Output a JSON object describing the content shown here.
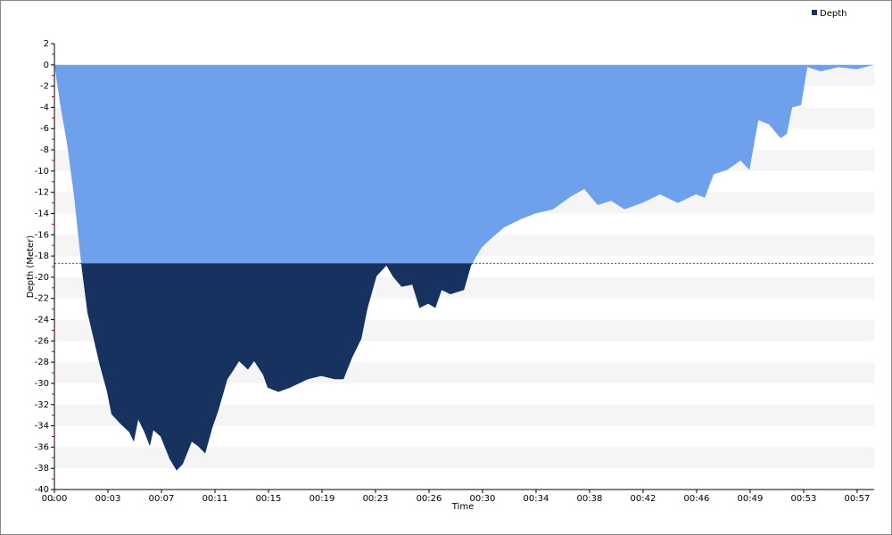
{
  "chart_data": {
    "type": "area",
    "x_label": "Time",
    "y_label": "Depth (Meter)",
    "x": [
      0,
      0.44,
      0.88,
      1.39,
      1.89,
      2.33,
      2.77,
      3.21,
      3.72,
      4.03,
      4.66,
      5.29,
      5.61,
      5.92,
      6.36,
      6.74,
      6.99,
      7.5,
      8.13,
      8.63,
      9.07,
      9.7,
      10.14,
      10.65,
      11.15,
      11.59,
      12.22,
      12.67,
      13.04,
      13.67,
      14.11,
      14.74,
      15.06,
      15.82,
      16.64,
      17.27,
      17.9,
      18.85,
      19.79,
      20.42,
      21.05,
      21.68,
      22.12,
      22.75,
      23.45,
      23.89,
      24.52,
      25.28,
      25.78,
      26.41,
      26.91,
      27.35,
      27.98,
      28.93,
      29.43,
      30.18,
      30.81,
      31.76,
      33.02,
      33.96,
      35.22,
      36.48,
      37.43,
      38.37,
      39.32,
      40.26,
      41.52,
      42.78,
      44.04,
      45.31,
      45.94,
      46.57,
      47.51,
      48.46,
      49.09,
      49.72,
      50.47,
      51.29,
      51.73,
      52.11,
      52.74,
      53.18,
      54.13,
      55.39,
      56.65,
      57.9
    ],
    "series": [
      {
        "name": "Depth",
        "color": "#17325f",
        "upper_color": "#6fa0ec",
        "values": [
          0,
          -4,
          -7.3,
          -12.4,
          -18.7,
          -23.3,
          -25.8,
          -28.3,
          -30.8,
          -32.9,
          -33.8,
          -34.6,
          -35.5,
          -33.4,
          -34.6,
          -35.9,
          -34.4,
          -35,
          -37.1,
          -38.2,
          -37.6,
          -35.5,
          -35.9,
          -36.6,
          -34.2,
          -32.5,
          -29.6,
          -28.7,
          -27.9,
          -28.7,
          -27.9,
          -29.2,
          -30.4,
          -30.8,
          -30.4,
          -30,
          -29.6,
          -29.3,
          -29.6,
          -29.6,
          -27.5,
          -25.8,
          -22.9,
          -19.9,
          -18.9,
          -19.9,
          -20.9,
          -20.7,
          -22.9,
          -22.5,
          -22.9,
          -21.2,
          -21.6,
          -21.2,
          -18.9,
          -17.2,
          -16.4,
          -15.3,
          -14.5,
          -14,
          -13.6,
          -12.4,
          -11.7,
          -13.2,
          -12.8,
          -13.6,
          -13,
          -12.2,
          -13,
          -12.2,
          -12.5,
          -10.3,
          -9.9,
          -9,
          -9.9,
          -5.2,
          -5.6,
          -6.9,
          -6.5,
          -4,
          -3.8,
          -0.2,
          -0.6,
          -0.2,
          -0.4,
          0
        ]
      }
    ],
    "reference_line": -18.7,
    "reference_color": "#3b4fd0",
    "xlim": [
      0,
      57.9
    ],
    "xticks": [
      {
        "value": 0,
        "label": "00:00"
      },
      {
        "value": 3.78,
        "label": "00:03"
      },
      {
        "value": 7.56,
        "label": "00:07"
      },
      {
        "value": 11.34,
        "label": "00:11"
      },
      {
        "value": 15.12,
        "label": "00:15"
      },
      {
        "value": 18.9,
        "label": "00:19"
      },
      {
        "value": 22.68,
        "label": "00:23"
      },
      {
        "value": 26.46,
        "label": "00:26"
      },
      {
        "value": 30.24,
        "label": "00:30"
      },
      {
        "value": 34.02,
        "label": "00:34"
      },
      {
        "value": 37.8,
        "label": "00:38"
      },
      {
        "value": 41.58,
        "label": "00:42"
      },
      {
        "value": 45.36,
        "label": "00:46"
      },
      {
        "value": 49.14,
        "label": "00:49"
      },
      {
        "value": 52.92,
        "label": "00:53"
      },
      {
        "value": 56.7,
        "label": "00:57"
      }
    ],
    "ylim": [
      -40,
      2
    ],
    "yticks": [
      2,
      0,
      -2,
      -4,
      -6,
      -8,
      -10,
      -12,
      -14,
      -16,
      -18,
      -20,
      -22,
      -24,
      -26,
      -28,
      -30,
      -32,
      -34,
      -36,
      -38,
      -40
    ],
    "legend": "top-right"
  }
}
